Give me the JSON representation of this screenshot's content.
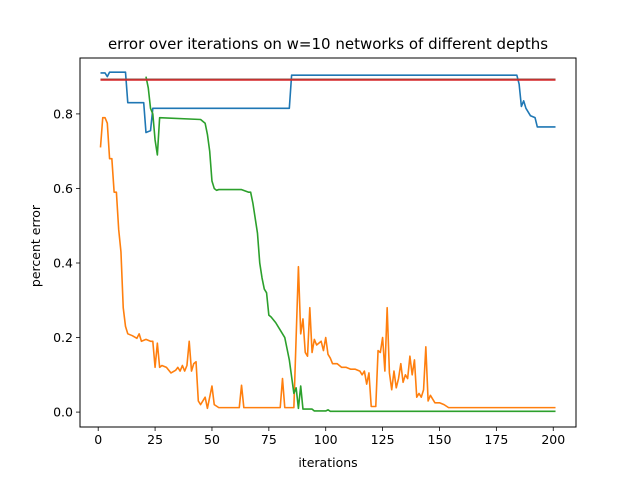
{
  "chart_data": {
    "type": "line",
    "title": "error over iterations on w=10 networks of different depths",
    "xlabel": "iterations",
    "ylabel": "percent error",
    "xlim": [
      -8,
      210
    ],
    "ylim": [
      -0.04,
      0.95
    ],
    "xticks": [
      0,
      25,
      50,
      75,
      100,
      125,
      150,
      175,
      200
    ],
    "yticks": [
      0.0,
      0.2,
      0.4,
      0.6,
      0.8
    ],
    "ytick_labels": [
      "0.0",
      "0.2",
      "0.4",
      "0.6",
      "0.8"
    ],
    "grid": false,
    "series": [
      {
        "color": "#1f77b4",
        "points": [
          [
            1,
            0.91
          ],
          [
            3,
            0.91
          ],
          [
            4,
            0.9
          ],
          [
            5,
            0.912
          ],
          [
            12,
            0.912
          ],
          [
            13,
            0.83
          ],
          [
            20,
            0.83
          ],
          [
            21,
            0.75
          ],
          [
            23,
            0.755
          ],
          [
            24,
            0.815
          ],
          [
            84,
            0.815
          ],
          [
            85,
            0.904
          ],
          [
            184,
            0.904
          ],
          [
            185,
            0.88
          ],
          [
            186,
            0.82
          ],
          [
            187,
            0.835
          ],
          [
            188,
            0.815
          ],
          [
            190,
            0.795
          ],
          [
            192,
            0.79
          ],
          [
            193,
            0.765
          ],
          [
            201,
            0.765
          ]
        ]
      },
      {
        "color": "#ff7f0e",
        "points": [
          [
            1,
            0.71
          ],
          [
            2,
            0.79
          ],
          [
            3,
            0.79
          ],
          [
            4,
            0.775
          ],
          [
            5,
            0.68
          ],
          [
            6,
            0.68
          ],
          [
            7,
            0.59
          ],
          [
            8,
            0.59
          ],
          [
            9,
            0.49
          ],
          [
            10,
            0.43
          ],
          [
            11,
            0.28
          ],
          [
            12,
            0.23
          ],
          [
            13,
            0.21
          ],
          [
            15,
            0.205
          ],
          [
            17,
            0.198
          ],
          [
            18,
            0.21
          ],
          [
            19,
            0.19
          ],
          [
            21,
            0.195
          ],
          [
            23,
            0.19
          ],
          [
            24,
            0.19
          ],
          [
            25,
            0.12
          ],
          [
            26,
            0.185
          ],
          [
            27,
            0.12
          ],
          [
            28,
            0.125
          ],
          [
            30,
            0.12
          ],
          [
            32,
            0.105
          ],
          [
            34,
            0.112
          ],
          [
            35,
            0.12
          ],
          [
            36,
            0.11
          ],
          [
            37,
            0.125
          ],
          [
            38,
            0.11
          ],
          [
            39,
            0.125
          ],
          [
            40,
            0.19
          ],
          [
            41,
            0.11
          ],
          [
            42,
            0.13
          ],
          [
            43,
            0.135
          ],
          [
            44,
            0.03
          ],
          [
            45,
            0.02
          ],
          [
            47,
            0.04
          ],
          [
            48,
            0.01
          ],
          [
            50,
            0.07
          ],
          [
            51,
            0.02
          ],
          [
            53,
            0.012
          ],
          [
            62,
            0.012
          ],
          [
            63,
            0.072
          ],
          [
            64,
            0.012
          ],
          [
            80,
            0.012
          ],
          [
            81,
            0.09
          ],
          [
            82,
            0.012
          ],
          [
            86,
            0.012
          ],
          [
            88,
            0.39
          ],
          [
            89,
            0.21
          ],
          [
            90,
            0.25
          ],
          [
            91,
            0.16
          ],
          [
            92,
            0.15
          ],
          [
            93,
            0.28
          ],
          [
            94,
            0.16
          ],
          [
            95,
            0.195
          ],
          [
            96,
            0.18
          ],
          [
            98,
            0.19
          ],
          [
            99,
            0.165
          ],
          [
            100,
            0.2
          ],
          [
            101,
            0.155
          ],
          [
            102,
            0.145
          ],
          [
            103,
            0.13
          ],
          [
            105,
            0.13
          ],
          [
            107,
            0.12
          ],
          [
            109,
            0.12
          ],
          [
            111,
            0.115
          ],
          [
            113,
            0.115
          ],
          [
            115,
            0.11
          ],
          [
            116,
            0.1
          ],
          [
            117,
            0.11
          ],
          [
            118,
            0.075
          ],
          [
            119,
            0.105
          ],
          [
            120,
            0.015
          ],
          [
            122,
            0.015
          ],
          [
            123,
            0.165
          ],
          [
            124,
            0.16
          ],
          [
            125,
            0.2
          ],
          [
            126,
            0.11
          ],
          [
            127,
            0.28
          ],
          [
            128,
            0.105
          ],
          [
            129,
            0.06
          ],
          [
            130,
            0.11
          ],
          [
            131,
            0.065
          ],
          [
            132,
            0.09
          ],
          [
            133,
            0.13
          ],
          [
            134,
            0.08
          ],
          [
            135,
            0.1
          ],
          [
            136,
            0.09
          ],
          [
            137,
            0.15
          ],
          [
            138,
            0.1
          ],
          [
            139,
            0.14
          ],
          [
            140,
            0.04
          ],
          [
            141,
            0.05
          ],
          [
            142,
            0.04
          ],
          [
            143,
            0.06
          ],
          [
            144,
            0.175
          ],
          [
            145,
            0.03
          ],
          [
            146,
            0.045
          ],
          [
            147,
            0.035
          ],
          [
            148,
            0.025
          ],
          [
            150,
            0.025
          ],
          [
            152,
            0.02
          ],
          [
            154,
            0.012
          ],
          [
            201,
            0.012
          ]
        ]
      },
      {
        "color": "#2ca02c",
        "points": [
          [
            21,
            0.9
          ],
          [
            22,
            0.87
          ],
          [
            23,
            0.815
          ],
          [
            24,
            0.8
          ],
          [
            25,
            0.73
          ],
          [
            26,
            0.69
          ],
          [
            27,
            0.79
          ],
          [
            45,
            0.785
          ],
          [
            47,
            0.775
          ],
          [
            48,
            0.745
          ],
          [
            49,
            0.7
          ],
          [
            50,
            0.62
          ],
          [
            51,
            0.6
          ],
          [
            52,
            0.595
          ],
          [
            53,
            0.597
          ],
          [
            63,
            0.597
          ],
          [
            66,
            0.59
          ],
          [
            67,
            0.59
          ],
          [
            68,
            0.56
          ],
          [
            70,
            0.48
          ],
          [
            71,
            0.4
          ],
          [
            72,
            0.36
          ],
          [
            73,
            0.33
          ],
          [
            74,
            0.32
          ],
          [
            75,
            0.26
          ],
          [
            76,
            0.255
          ],
          [
            78,
            0.24
          ],
          [
            80,
            0.22
          ],
          [
            82,
            0.2
          ],
          [
            83,
            0.17
          ],
          [
            84,
            0.14
          ],
          [
            85,
            0.095
          ],
          [
            86,
            0.05
          ],
          [
            87,
            0.065
          ],
          [
            88,
            0.01
          ],
          [
            89,
            0.07
          ],
          [
            90,
            0.008
          ],
          [
            94,
            0.008
          ],
          [
            95,
            0.003
          ],
          [
            100,
            0.003
          ],
          [
            101,
            0.006
          ],
          [
            102,
            0.002
          ],
          [
            201,
            0.002
          ]
        ]
      },
      {
        "color": "#8c564b",
        "points": [
          [
            1,
            0.893
          ],
          [
            201,
            0.893
          ]
        ]
      },
      {
        "color": "#d62728",
        "points": [
          [
            1,
            0.891
          ],
          [
            201,
            0.891
          ]
        ]
      }
    ]
  }
}
